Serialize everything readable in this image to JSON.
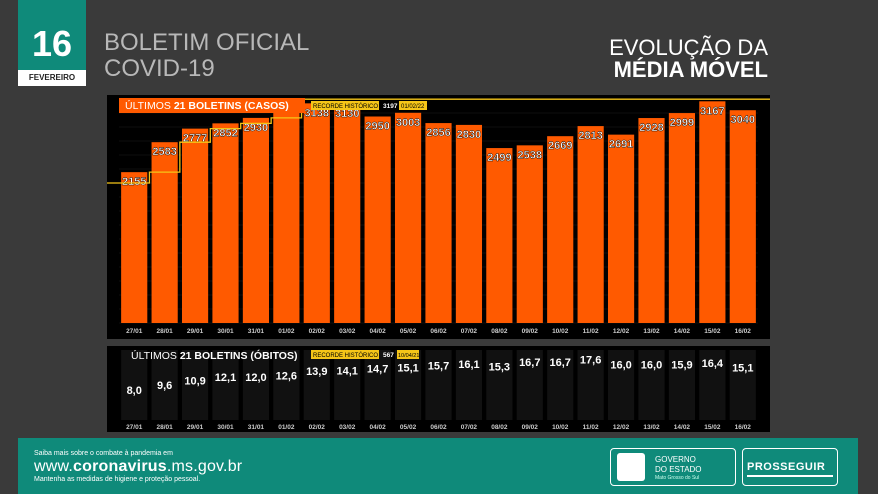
{
  "date": {
    "day": "16",
    "month": "FEVEREIRO"
  },
  "header": {
    "title_line1": "BOLETIM OFICIAL",
    "title_line2": "COVID-19",
    "right_line1": "EVOLUÇÃO DA",
    "right_line2": "MÉDIA MÓVEL"
  },
  "colors": {
    "bar": "#ff5a00",
    "accent": "#f5c518",
    "teal": "#0f8a7a",
    "panel": "#000000"
  },
  "footer": {
    "small_top": "Saiba mais sobre o combate à pandemia em",
    "url_prefix": "www.",
    "url_bold": "coronavirus",
    "url_suffix": ".ms.gov.br",
    "small_bottom": "Mantenha as medidas de higiene e proteção pessoal.",
    "gov_line1": "GOVERNO",
    "gov_line2": "DO ESTADO",
    "gov_sub": "Mato Grosso do Sul",
    "prosseguir": "PROSSEGUIR"
  },
  "chart_data": [
    {
      "type": "bar",
      "title_prefix": "ÚLTIMOS ",
      "title_bold": "21 BOLETINS (CASOS)",
      "record_label": "RECORDE HISTÓRICO",
      "record_value": "3197",
      "record_date": "01/02/22",
      "categories": [
        "27/01",
        "28/01",
        "29/01",
        "30/01",
        "31/01",
        "01/02",
        "02/02",
        "03/02",
        "04/02",
        "05/02",
        "06/02",
        "07/02",
        "08/02",
        "09/02",
        "10/02",
        "11/02",
        "12/02",
        "13/02",
        "14/02",
        "15/02",
        "16/02"
      ],
      "values": [
        2155,
        2583,
        2777,
        2852,
        2930,
        3197,
        3138,
        3130,
        2950,
        3003,
        2856,
        2830,
        2499,
        2538,
        2669,
        2813,
        2691,
        2928,
        2999,
        3167,
        3040
      ],
      "value_labels": [
        "2155",
        "2583",
        "2777",
        "2852",
        "2930",
        "3197",
        "3138",
        "3130",
        "2950",
        "3003",
        "2856",
        "2830",
        "2499",
        "2538",
        "2669",
        "2813",
        "2691",
        "2928",
        "2999",
        "3167",
        "3040"
      ],
      "record_steps": [
        2000,
        2155,
        2583,
        2777,
        2852,
        2930,
        3197,
        3197,
        3197,
        3197,
        3197,
        3197,
        3197,
        3197,
        3197,
        3197,
        3197,
        3197,
        3197,
        3197,
        3197
      ],
      "ylim": [
        0,
        3200
      ]
    },
    {
      "type": "bar",
      "title_prefix": "ÚLTIMOS ",
      "title_bold": "21 BOLETINS (ÓBITOS)",
      "record_label": "RECORDE HISTÓRICO",
      "record_value": "567",
      "record_date": "10/04/21",
      "categories": [
        "27/01",
        "28/01",
        "29/01",
        "30/01",
        "31/01",
        "01/02",
        "02/02",
        "03/02",
        "04/02",
        "05/02",
        "06/02",
        "07/02",
        "08/02",
        "09/02",
        "10/02",
        "11/02",
        "12/02",
        "13/02",
        "14/02",
        "15/02",
        "16/02"
      ],
      "values": [
        8.0,
        9.6,
        10.9,
        12.1,
        12.0,
        12.6,
        13.9,
        14.1,
        14.7,
        15.1,
        15.7,
        16.1,
        15.3,
        16.7,
        16.7,
        17.6,
        16.0,
        16.0,
        15.9,
        16.4,
        15.1
      ],
      "value_labels": [
        "8,0",
        "9,6",
        "10,9",
        "12,1",
        "12,0",
        "12,6",
        "13,9",
        "14,1",
        "14,7",
        "15,1",
        "15,7",
        "16,1",
        "15,3",
        "16,7",
        "16,7",
        "17,6",
        "16,0",
        "16,0",
        "15,9",
        "16,4",
        "15,1"
      ]
    }
  ]
}
